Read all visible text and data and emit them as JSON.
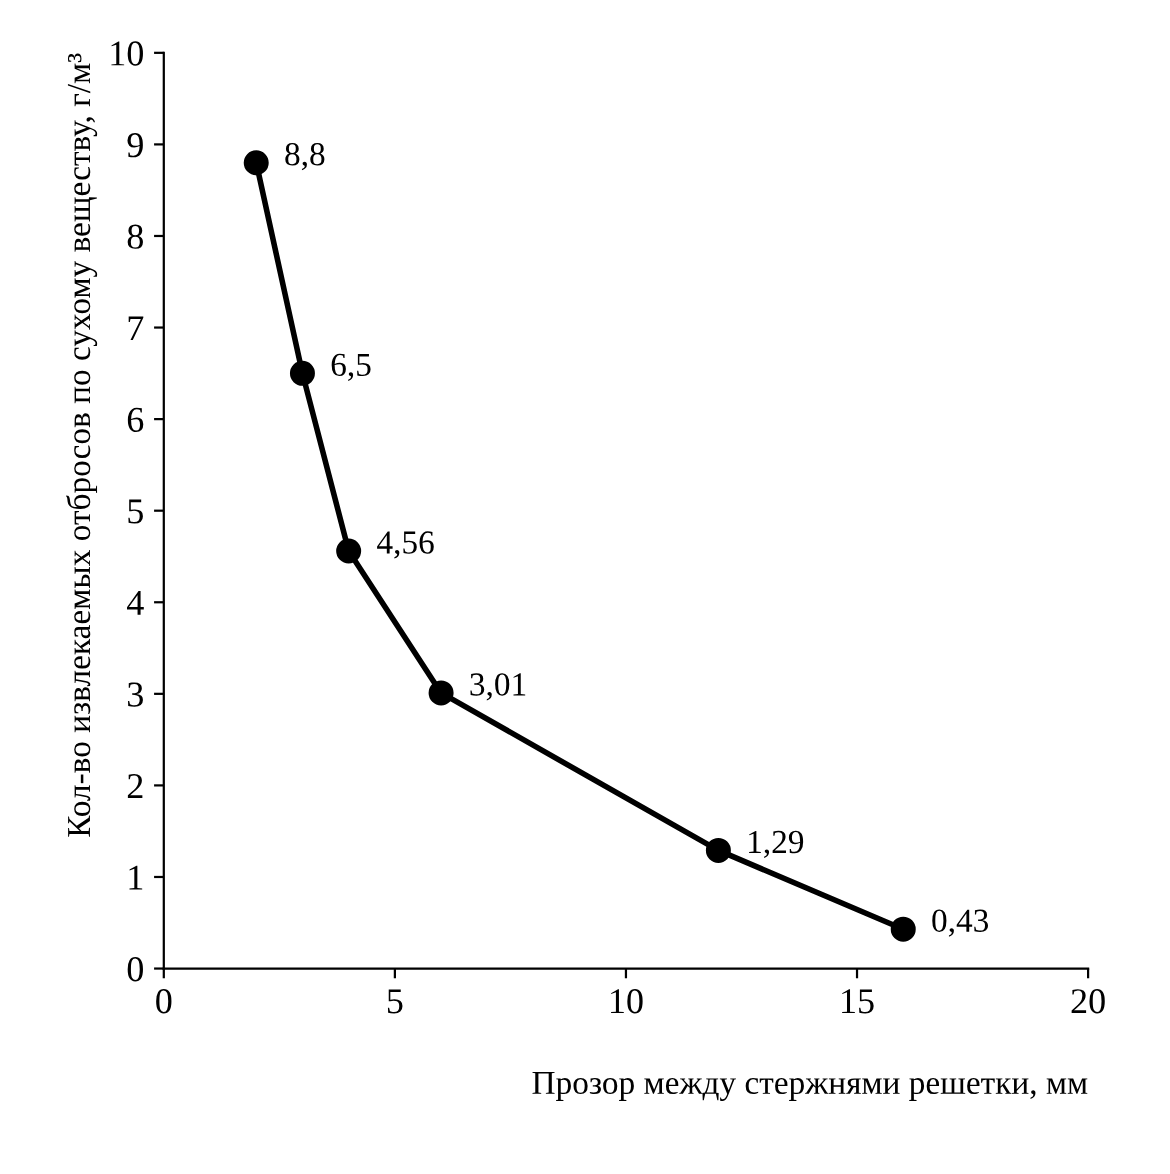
{
  "chart_data": {
    "type": "line",
    "xlabel": "Прозор между стержнями решетки, мм",
    "ylabel": "Кол-во извлекаемых отбросов по сухому веществу, г/м³",
    "x": [
      2,
      3,
      4,
      6,
      12,
      16
    ],
    "series": [
      {
        "color": "#000000",
        "values": [
          8.8,
          6.5,
          4.56,
          3.01,
          1.29,
          0.43
        ],
        "value_labels": [
          "8,8",
          "6,5",
          "4,56",
          "3,01",
          "1,29",
          "0,43"
        ]
      }
    ],
    "xlim": [
      0,
      20
    ],
    "xticks": [
      0,
      5,
      10,
      15,
      20
    ],
    "ylim": [
      0,
      10
    ],
    "yticks": [
      0,
      1,
      2,
      3,
      4,
      5,
      6,
      7,
      8,
      9,
      10
    ],
    "marker": "circle",
    "line_style": "solid",
    "grid": false
  }
}
